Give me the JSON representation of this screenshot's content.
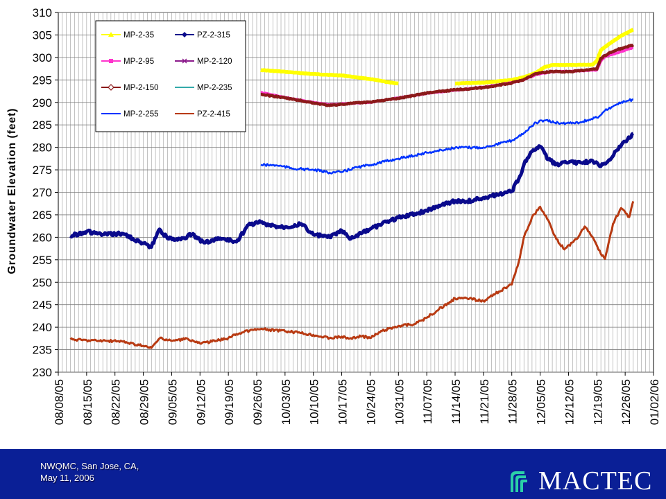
{
  "chart_data": {
    "type": "line",
    "ylabel": "Groundwater Elevation (feet)",
    "xlabel": "",
    "ylim": [
      230,
      310
    ],
    "yticks": [
      230,
      235,
      240,
      245,
      250,
      255,
      260,
      265,
      270,
      275,
      280,
      285,
      290,
      295,
      300,
      305,
      310
    ],
    "xlim": [
      "08/08/05",
      "01/02/06"
    ],
    "xtick_labels": [
      "08/08/05",
      "08/15/05",
      "08/22/05",
      "08/29/05",
      "09/05/05",
      "09/12/05",
      "09/19/05",
      "09/26/05",
      "10/03/05",
      "10/10/05",
      "10/17/05",
      "10/24/05",
      "10/31/05",
      "11/07/05",
      "11/14/05",
      "11/21/05",
      "11/28/05",
      "12/05/05",
      "12/12/05",
      "12/19/05",
      "12/26/05",
      "01/02/06"
    ],
    "grid": "vertical gridlines every day; horizontal gridlines every 5 feet",
    "legend_position": "top-left, inside plot",
    "series": [
      {
        "name": "MP-2-35",
        "color": "#ffff00",
        "marker": "triangle",
        "points": [
          [
            "09/27/05",
            297.2
          ],
          [
            "10/03/05",
            296.8
          ],
          [
            "10/10/05",
            296.3
          ],
          [
            "10/17/05",
            296.0
          ],
          [
            "10/24/05",
            295.2
          ],
          [
            "10/29/05",
            294.4
          ],
          [
            "10/31/05",
            294.2
          ],
          null,
          [
            "11/14/05",
            294.2
          ],
          [
            "11/21/05",
            294.4
          ],
          [
            "11/28/05",
            295.0
          ],
          [
            "12/01/05",
            295.6
          ],
          [
            "12/04/05",
            296.6
          ],
          [
            "12/06/05",
            297.8
          ],
          [
            "12/08/05",
            298.3
          ],
          [
            "12/12/05",
            298.3
          ],
          [
            "12/18/05",
            298.4
          ],
          [
            "12/19/05",
            299.2
          ],
          [
            "12/20/05",
            301.6
          ],
          [
            "12/22/05",
            303.0
          ],
          [
            "12/25/05",
            304.8
          ],
          [
            "12/28/05",
            306.2
          ]
        ]
      },
      {
        "name": "MP-2-95",
        "color": "#ff33cc",
        "marker": "square",
        "points": [
          [
            "09/27/05",
            292.2
          ],
          [
            "10/03/05",
            291.1
          ],
          [
            "10/10/05",
            290.0
          ],
          [
            "10/14/05",
            289.5
          ],
          [
            "10/17/05",
            289.7
          ],
          [
            "10/24/05",
            290.0
          ],
          [
            "10/31/05",
            291.0
          ],
          [
            "11/07/05",
            292.0
          ],
          [
            "11/14/05",
            292.7
          ],
          [
            "11/21/05",
            293.4
          ],
          [
            "11/28/05",
            294.4
          ],
          [
            "12/01/05",
            295.0
          ],
          [
            "12/04/05",
            296.2
          ],
          [
            "12/08/05",
            296.8
          ],
          [
            "12/12/05",
            296.9
          ],
          [
            "12/19/05",
            297.2
          ],
          [
            "12/20/05",
            299.2
          ],
          [
            "12/21/05",
            300.1
          ],
          [
            "12/24/05",
            301.0
          ],
          [
            "12/28/05",
            302.2
          ]
        ]
      },
      {
        "name": "MP-2-150",
        "color": "#8b1a1a",
        "marker": "open-diamond",
        "points": [
          [
            "09/27/05",
            291.8
          ],
          [
            "10/03/05",
            291.0
          ],
          [
            "10/10/05",
            289.9
          ],
          [
            "10/14/05",
            289.3
          ],
          [
            "10/17/05",
            289.6
          ],
          [
            "10/24/05",
            290.1
          ],
          [
            "10/31/05",
            290.9
          ],
          [
            "11/07/05",
            292.1
          ],
          [
            "11/14/05",
            292.8
          ],
          [
            "11/21/05",
            293.3
          ],
          [
            "11/28/05",
            294.3
          ],
          [
            "12/01/05",
            295.1
          ],
          [
            "12/04/05",
            296.4
          ],
          [
            "12/08/05",
            296.9
          ],
          [
            "12/12/05",
            296.8
          ],
          [
            "12/19/05",
            297.4
          ],
          [
            "12/20/05",
            299.8
          ],
          [
            "12/22/05",
            301.0
          ],
          [
            "12/25/05",
            302.0
          ],
          [
            "12/28/05",
            302.8
          ]
        ]
      },
      {
        "name": "MP-2-255",
        "color": "#0033ff",
        "marker": "dash",
        "points": [
          [
            "09/27/05",
            276.1
          ],
          [
            "10/01/05",
            276.0
          ],
          [
            "10/05/05",
            275.3
          ],
          [
            "10/10/05",
            275.0
          ],
          [
            "10/14/05",
            274.4
          ],
          [
            "10/17/05",
            274.5
          ],
          [
            "10/20/05",
            275.4
          ],
          [
            "10/24/05",
            276.1
          ],
          [
            "10/28/05",
            276.9
          ],
          [
            "10/31/05",
            277.5
          ],
          [
            "11/07/05",
            278.8
          ],
          [
            "11/14/05",
            279.9
          ],
          [
            "11/21/05",
            280.0
          ],
          [
            "11/28/05",
            281.5
          ],
          [
            "12/01/05",
            283.2
          ],
          [
            "12/04/05",
            285.5
          ],
          [
            "12/06/05",
            286.0
          ],
          [
            "12/10/05",
            285.3
          ],
          [
            "12/15/05",
            285.6
          ],
          [
            "12/19/05",
            286.6
          ],
          [
            "12/21/05",
            288.2
          ],
          [
            "12/24/05",
            289.6
          ],
          [
            "12/28/05",
            290.7
          ]
        ]
      },
      {
        "name": "PZ-2-315",
        "color": "#0a0a8c",
        "marker": "diamond",
        "points": [
          [
            "08/11/05",
            260.3
          ],
          [
            "08/15/05",
            261.3
          ],
          [
            "08/19/05",
            260.6
          ],
          [
            "08/24/05",
            260.8
          ],
          [
            "08/28/05",
            259.0
          ],
          [
            "08/31/05",
            257.8
          ],
          [
            "09/02/05",
            261.8
          ],
          [
            "09/04/05",
            259.7
          ],
          [
            "09/07/05",
            259.6
          ],
          [
            "09/10/05",
            260.6
          ],
          [
            "09/13/05",
            258.8
          ],
          [
            "09/17/05",
            259.8
          ],
          [
            "09/21/05",
            259.0
          ],
          [
            "09/24/05",
            262.8
          ],
          [
            "09/27/05",
            263.4
          ],
          [
            "09/29/05",
            262.6
          ],
          [
            "10/03/05",
            262.3
          ],
          [
            "10/07/05",
            263.0
          ],
          [
            "10/10/05",
            260.6
          ],
          [
            "10/14/05",
            260.0
          ],
          [
            "10/17/05",
            261.5
          ],
          [
            "10/19/05",
            259.6
          ],
          [
            "10/24/05",
            261.8
          ],
          [
            "10/28/05",
            263.4
          ],
          [
            "10/31/05",
            264.4
          ],
          [
            "11/04/05",
            265.2
          ],
          [
            "11/07/05",
            265.9
          ],
          [
            "11/10/05",
            267.1
          ],
          [
            "11/14/05",
            268.1
          ],
          [
            "11/17/05",
            268.0
          ],
          [
            "11/21/05",
            268.8
          ],
          [
            "11/25/05",
            269.6
          ],
          [
            "11/28/05",
            270.2
          ],
          [
            "11/30/05",
            273.6
          ],
          [
            "12/01/05",
            276.2
          ],
          [
            "12/03/05",
            279.1
          ],
          [
            "12/05/05",
            280.2
          ],
          [
            "12/07/05",
            277.3
          ],
          [
            "12/09/05",
            276.2
          ],
          [
            "12/12/05",
            276.6
          ],
          [
            "12/15/05",
            276.6
          ],
          [
            "12/18/05",
            277.0
          ],
          [
            "12/20/05",
            275.8
          ],
          [
            "12/22/05",
            277.2
          ],
          [
            "12/24/05",
            279.4
          ],
          [
            "12/26/05",
            281.3
          ],
          [
            "12/28/05",
            283.1
          ]
        ]
      },
      {
        "name": "PZ-2-415",
        "color": "#b83a12",
        "marker": "dash",
        "points": [
          [
            "08/11/05",
            237.3
          ],
          [
            "08/15/05",
            237.1
          ],
          [
            "08/19/05",
            237.0
          ],
          [
            "08/24/05",
            236.8
          ],
          [
            "08/28/05",
            236.0
          ],
          [
            "08/31/05",
            235.4
          ],
          [
            "09/02/05",
            237.5
          ],
          [
            "09/05/05",
            237.0
          ],
          [
            "09/09/05",
            237.4
          ],
          [
            "09/12/05",
            236.4
          ],
          [
            "09/16/05",
            237.0
          ],
          [
            "09/19/05",
            237.6
          ],
          [
            "09/21/05",
            238.5
          ],
          [
            "09/25/05",
            239.4
          ],
          [
            "09/27/05",
            239.6
          ],
          [
            "10/03/05",
            239.1
          ],
          [
            "10/07/05",
            238.7
          ],
          [
            "10/10/05",
            238.3
          ],
          [
            "10/14/05",
            237.6
          ],
          [
            "10/17/05",
            237.9
          ],
          [
            "10/19/05",
            237.5
          ],
          [
            "10/22/05",
            238.0
          ],
          [
            "10/24/05",
            237.6
          ],
          [
            "10/27/05",
            239.2
          ],
          [
            "10/31/05",
            240.3
          ],
          [
            "11/04/05",
            240.7
          ],
          [
            "11/07/05",
            242.1
          ],
          [
            "11/10/05",
            244.0
          ],
          [
            "11/14/05",
            246.4
          ],
          [
            "11/17/05",
            246.4
          ],
          [
            "11/21/05",
            245.8
          ],
          [
            "11/24/05",
            247.5
          ],
          [
            "11/28/05",
            249.5
          ],
          [
            "11/30/05",
            255.5
          ],
          [
            "12/01/05",
            260.0
          ],
          [
            "12/03/05",
            264.5
          ],
          [
            "12/05/05",
            266.8
          ],
          [
            "12/07/05",
            263.8
          ],
          [
            "12/09/05",
            259.6
          ],
          [
            "12/11/05",
            257.3
          ],
          [
            "12/14/05",
            259.6
          ],
          [
            "12/16/05",
            262.4
          ],
          [
            "12/18/05",
            260.0
          ],
          [
            "12/20/05",
            256.3
          ],
          [
            "12/21/05",
            255.2
          ],
          [
            "12/23/05",
            263.0
          ],
          [
            "12/25/05",
            266.5
          ],
          [
            "12/27/05",
            264.5
          ],
          [
            "12/28/05",
            268.0
          ]
        ]
      }
    ],
    "legend": [
      {
        "name": "MP-2-35",
        "color": "#ffff00",
        "marker": "triangle"
      },
      {
        "name": "PZ-2-315",
        "color": "#0a0a8c",
        "marker": "diamond"
      },
      {
        "name": "MP-2-95",
        "color": "#ff33cc",
        "marker": "square"
      },
      {
        "name": "MP-2-120",
        "color": "#8b1a8b",
        "marker": "x"
      },
      {
        "name": "MP-2-150",
        "color": "#8b1a1a",
        "marker": "open-diamond"
      },
      {
        "name": "MP-2-235",
        "color": "#33aaaa",
        "marker": "dash"
      },
      {
        "name": "MP-2-255",
        "color": "#0033ff",
        "marker": "dash"
      },
      {
        "name": "PZ-2-415",
        "color": "#b83a12",
        "marker": "dash"
      }
    ]
  },
  "footer": {
    "line1": "NWQMC, San Jose, CA,",
    "line2": "May 11, 2006",
    "logo_text": "MACTEC",
    "background": "#0a1f96"
  }
}
